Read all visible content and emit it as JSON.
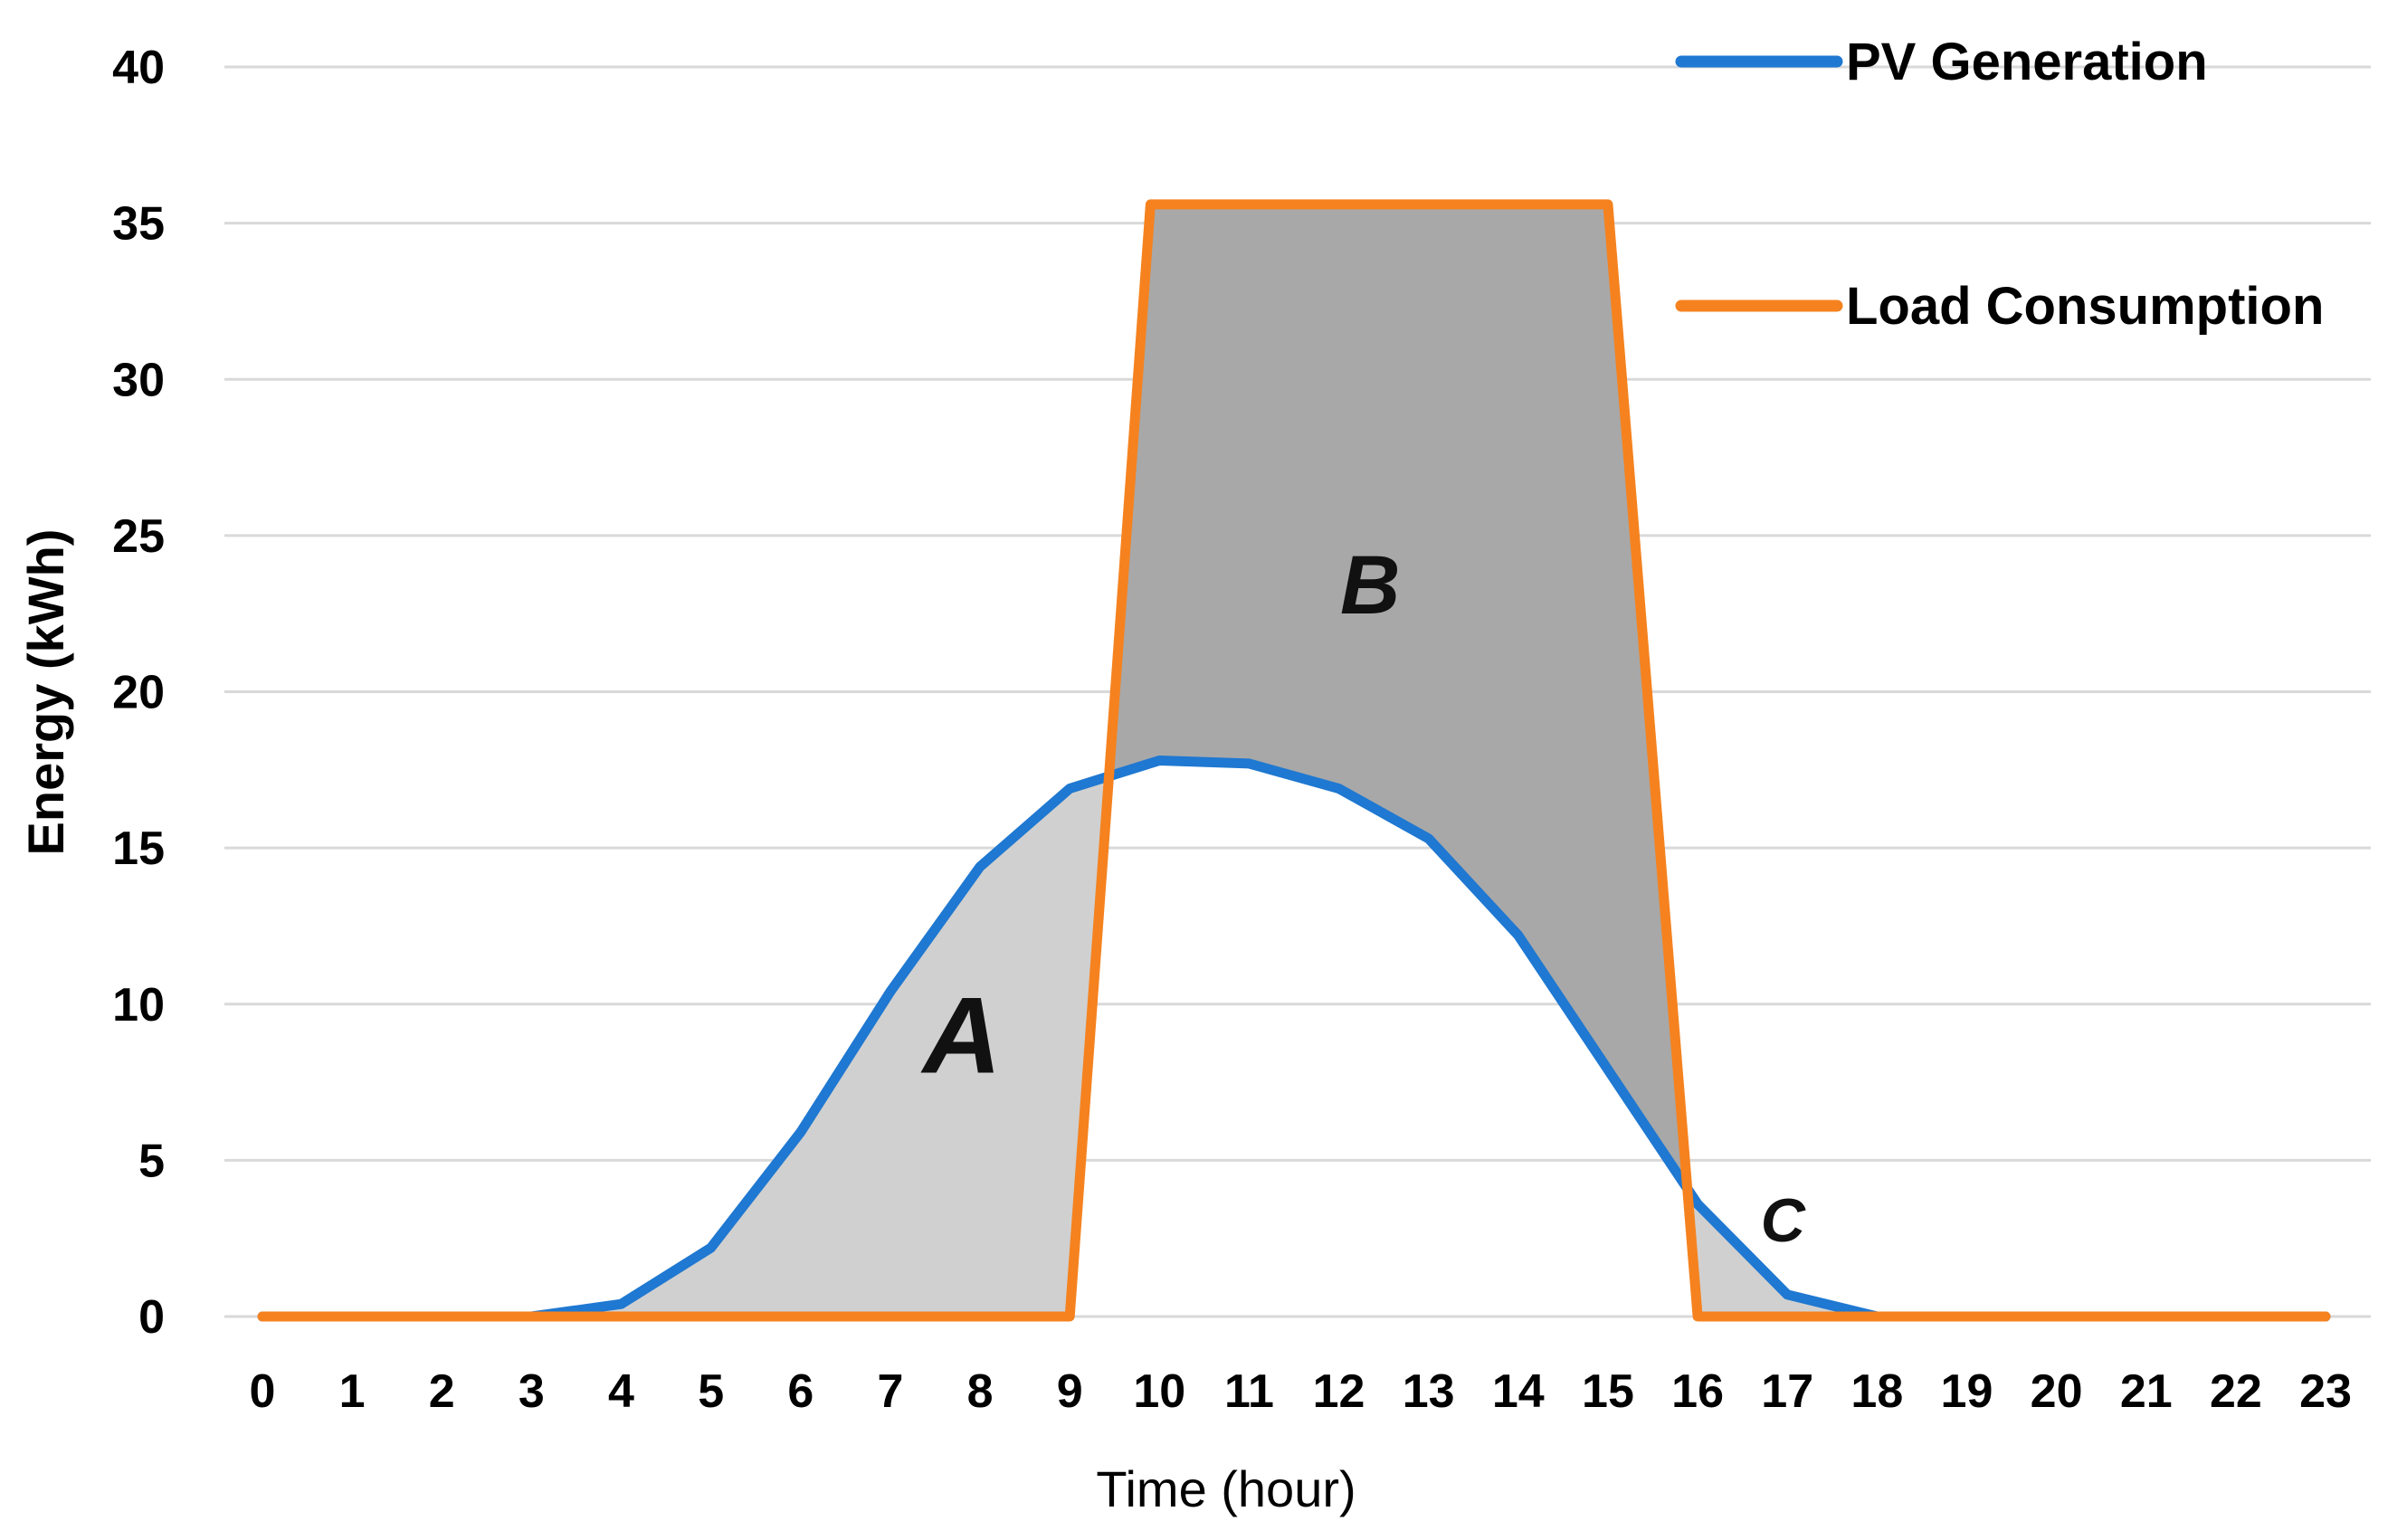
{
  "chart_data": {
    "type": "line",
    "title": "",
    "xlabel": "Time (hour)",
    "ylabel": "Energy (kWh)",
    "ylim": [
      0,
      40
    ],
    "yticks": [
      0,
      5,
      10,
      15,
      20,
      25,
      30,
      35,
      40
    ],
    "x": [
      0,
      1,
      2,
      3,
      4,
      5,
      6,
      7,
      8,
      9,
      10,
      11,
      12,
      13,
      14,
      15,
      16,
      17,
      18,
      19,
      20,
      21,
      22,
      23
    ],
    "grid": true,
    "legend_position": "top-right",
    "series": [
      {
        "name": "PV Generation",
        "color": "#1f78d1",
        "x": [
          0,
          1,
          2,
          3,
          4,
          5,
          6,
          7,
          8,
          9,
          10,
          11,
          12,
          13,
          14,
          15,
          16,
          17,
          18,
          19,
          20,
          21,
          22,
          23
        ],
        "values": [
          0,
          0,
          0,
          0,
          0.4,
          2.2,
          5.9,
          10.4,
          14.4,
          16.9,
          17.8,
          17.7,
          16.9,
          15.3,
          12.2,
          7.9,
          3.6,
          0.7,
          0,
          0,
          0,
          0,
          0,
          0
        ]
      },
      {
        "name": "Load Consumption",
        "color": "#f5821f",
        "x": [
          0,
          1,
          2,
          3,
          4,
          5,
          6,
          7,
          8,
          9,
          9.9,
          11,
          12,
          13,
          14,
          15,
          16,
          17,
          18,
          19,
          20,
          21,
          22,
          23
        ],
        "values": [
          0,
          0,
          0,
          0,
          0,
          0,
          0,
          0,
          0,
          0,
          35.6,
          35.6,
          35.6,
          35.6,
          35.6,
          35.6,
          0,
          0,
          0,
          0,
          0,
          0,
          0,
          0
        ]
      }
    ],
    "annotations": [
      {
        "text": "A",
        "x": 7.8,
        "y": 7.8,
        "size": "large"
      },
      {
        "text": "B",
        "x": 12.35,
        "y": 22.5,
        "size": "medium"
      },
      {
        "text": "C",
        "x": 16.95,
        "y": 2.4,
        "size": "small"
      }
    ]
  }
}
